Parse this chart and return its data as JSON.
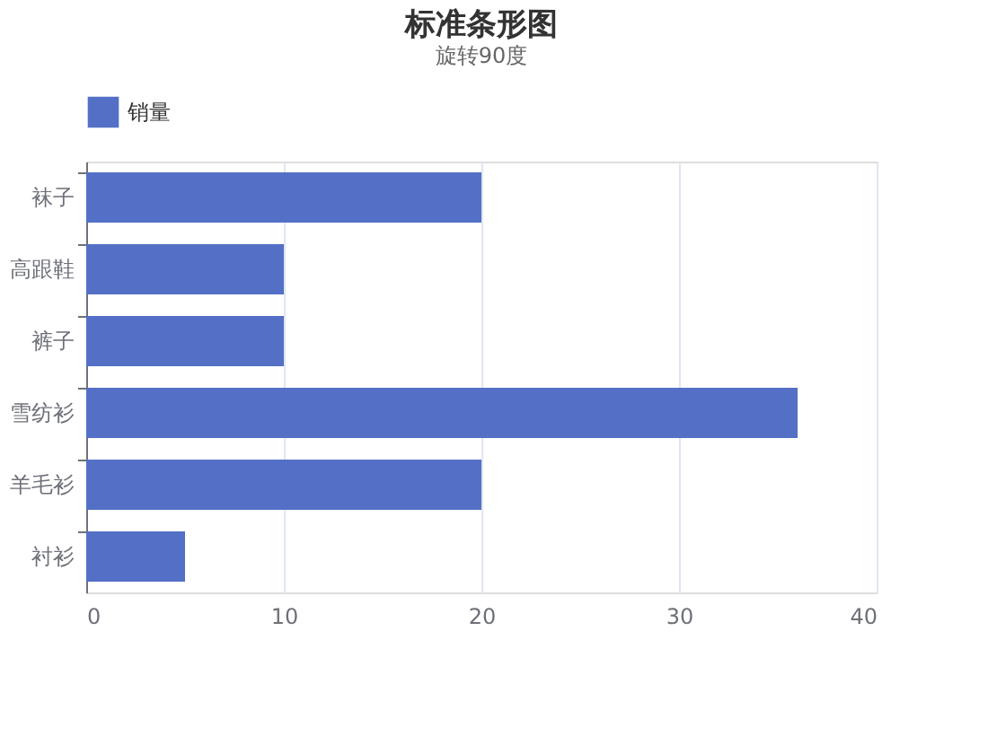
{
  "chart_data": {
    "type": "bar",
    "orientation": "horizontal",
    "title": "标准条形图",
    "subtitle": "旋转90度",
    "categories": [
      "袜子",
      "高跟鞋",
      "裤子",
      "雪纺衫",
      "羊毛衫",
      "衬衫"
    ],
    "series": [
      {
        "name": "销量",
        "color": "#5470c6",
        "values": [
          20,
          10,
          10,
          36,
          20,
          5
        ]
      }
    ],
    "xlim": [
      0,
      40
    ],
    "xticks": [
      0,
      10,
      20,
      30,
      40
    ],
    "grid": "x",
    "legend": "top"
  }
}
